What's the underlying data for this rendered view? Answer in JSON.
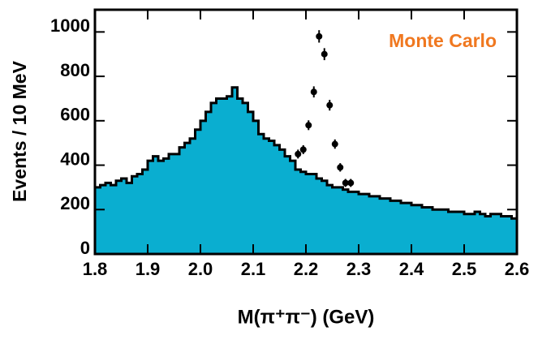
{
  "chart_data": {
    "type": "histogram",
    "annotation": "Monte Carlo",
    "xlabel": "M(π⁺π⁻) (GeV)",
    "ylabel": "Events / 10 MeV",
    "bins": [
      1.8,
      1.81,
      1.82,
      1.83,
      1.84,
      1.85,
      1.86,
      1.87,
      1.88,
      1.89,
      1.9,
      1.91,
      1.92,
      1.93,
      1.94,
      1.95,
      1.96,
      1.97,
      1.98,
      1.99,
      2.0,
      2.01,
      2.02,
      2.03,
      2.04,
      2.05,
      2.06,
      2.07,
      2.08,
      2.09,
      2.1,
      2.11,
      2.12,
      2.13,
      2.14,
      2.15,
      2.16,
      2.17,
      2.18,
      2.19,
      2.2,
      2.21,
      2.22,
      2.23,
      2.24,
      2.25,
      2.26,
      2.27,
      2.28,
      2.29,
      2.3,
      2.31,
      2.32,
      2.33,
      2.34,
      2.35,
      2.36,
      2.37,
      2.38,
      2.39,
      2.4,
      2.41,
      2.42,
      2.43,
      2.44,
      2.45,
      2.46,
      2.47,
      2.48,
      2.49,
      2.5,
      2.51,
      2.52,
      2.53,
      2.54,
      2.55,
      2.56,
      2.57,
      2.58,
      2.59,
      2.6
    ],
    "counts": [
      300,
      310,
      320,
      310,
      330,
      340,
      320,
      350,
      360,
      380,
      420,
      440,
      420,
      430,
      450,
      450,
      480,
      500,
      520,
      560,
      600,
      640,
      680,
      700,
      700,
      710,
      750,
      700,
      680,
      640,
      600,
      540,
      520,
      510,
      490,
      470,
      440,
      420,
      380,
      370,
      360,
      360,
      340,
      330,
      310,
      300,
      300,
      290,
      280,
      280,
      270,
      270,
      260,
      260,
      250,
      250,
      240,
      240,
      230,
      230,
      220,
      220,
      210,
      210,
      200,
      200,
      200,
      190,
      190,
      190,
      180,
      180,
      190,
      180,
      170,
      180,
      180,
      170,
      170,
      160
    ],
    "color": "#0aaed0",
    "edge_color": "#000000",
    "points": {
      "x": [
        2.185,
        2.195,
        2.205,
        2.215,
        2.225,
        2.235,
        2.245,
        2.255,
        2.265,
        2.275,
        2.285
      ],
      "values": [
        450,
        470,
        580,
        730,
        980,
        900,
        670,
        495,
        390,
        320,
        320
      ],
      "errors": [
        20,
        20,
        22,
        25,
        28,
        27,
        24,
        21,
        19,
        18,
        18
      ],
      "color": "#000000"
    },
    "xlim": [
      1.8,
      2.6
    ],
    "ylim": [
      0,
      1100
    ],
    "xticks": [
      1.8,
      1.9,
      {
        "value": 2,
        "label": "2.0"
      },
      2.1,
      2.2,
      2.3,
      2.4,
      2.5,
      2.6
    ],
    "yticks": [
      0,
      200,
      400,
      600,
      800,
      1000
    ]
  }
}
